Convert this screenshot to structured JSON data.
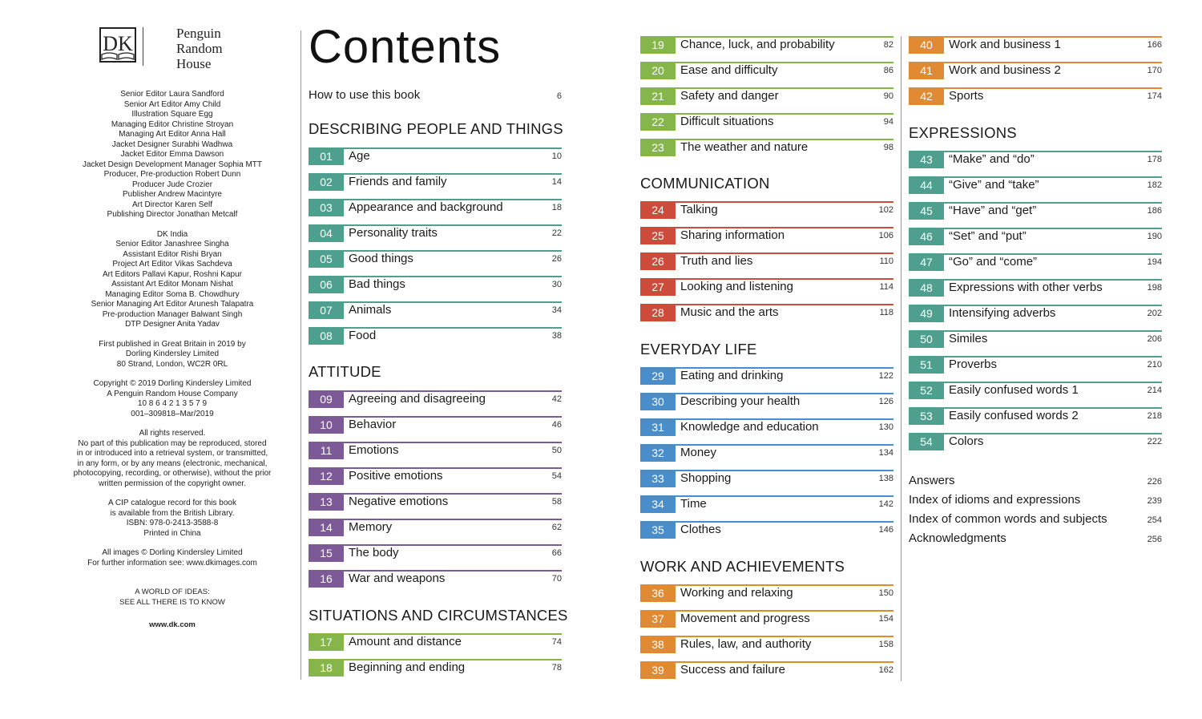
{
  "publisher": {
    "logo_text": "Penguin\nRandom\nHouse",
    "logo_line1": "Penguin",
    "logo_line2": "Random",
    "logo_line3": "House",
    "credits_uk": [
      {
        "role": "Senior Editor",
        "name": "Laura Sandford"
      },
      {
        "role": "Senior Art Editor",
        "name": "Amy Child"
      },
      {
        "role": "Illustration",
        "name": "Square Egg"
      },
      {
        "role": "Managing Editor",
        "name": "Christine Stroyan"
      },
      {
        "role": "Managing Art Editor",
        "name": "Anna Hall"
      },
      {
        "role": "Jacket Designer",
        "name": "Surabhi Wadhwa"
      },
      {
        "role": "Jacket Editor",
        "name": "Emma Dawson"
      },
      {
        "role": "Jacket Design Development Manager",
        "name": "Sophia MTT"
      },
      {
        "role": "Producer, Pre-production",
        "name": "Robert Dunn"
      },
      {
        "role": "Producer",
        "name": "Jude Crozier"
      },
      {
        "role": "Publisher",
        "name": "Andrew Macintyre"
      },
      {
        "role": "Art Director",
        "name": "Karen Self"
      },
      {
        "role": "Publishing Director",
        "name": "Jonathan Metcalf"
      }
    ],
    "india_heading": "DK India",
    "credits_india": [
      {
        "role": "Senior Editor",
        "name": "Janashree Singha"
      },
      {
        "role": "Assistant Editor",
        "name": "Rishi Bryan"
      },
      {
        "role": "Project Art Editor",
        "name": "Vikas Sachdeva"
      },
      {
        "role": "Art Editors",
        "name": "Pallavi Kapur, Roshni Kapur"
      },
      {
        "role": "Assistant Art Editor",
        "name": "Monam Nishat"
      },
      {
        "role": "Managing Editor",
        "name": "Soma B. Chowdhury"
      },
      {
        "role": "Senior Managing Art Editor",
        "name": "Arunesh Talapatra"
      },
      {
        "role": "Pre-production Manager",
        "name": "Balwant Singh"
      },
      {
        "role": "DTP Designer",
        "name": "Anita Yadav"
      }
    ],
    "first_published": [
      "First published in Great Britain in 2019 by",
      "Dorling Kindersley Limited",
      "80 Strand, London, WC2R 0RL"
    ],
    "copyright": [
      "Copyright © 2019 Dorling Kindersley Limited",
      "A Penguin Random House Company",
      "10 8 6 4 2 1 3 5 7 9",
      "001–309818–Mar/2019"
    ],
    "rights": [
      "All rights reserved.",
      "No part of this publication may be reproduced, stored",
      "in or introduced into a retrieval system, or transmitted,",
      "in any form, or by any means (electronic, mechanical,",
      "photocopying, recording, or otherwise), without the prior",
      "written permission of the copyright owner."
    ],
    "cip": [
      "A CIP catalogue record for this book",
      "is available from the British Library.",
      "ISBN: 978-0-2413-3588-8",
      "Printed in China"
    ],
    "images": [
      "All images © Dorling Kindersley Limited",
      "For further information see: www.dkimages.com"
    ],
    "tagline1": "A WORLD OF IDEAS:",
    "tagline2": "SEE ALL THERE IS TO KNOW",
    "website": "www.dk.com"
  },
  "contents": {
    "title": "Contents",
    "intro": {
      "label": "How to use this book",
      "page": "6"
    },
    "sections": [
      {
        "heading": "DESCRIBING PEOPLE AND THINGS",
        "color": "#4e9f8d",
        "entries": [
          {
            "num": "01",
            "label": "Age",
            "page": "10"
          },
          {
            "num": "02",
            "label": "Friends and family",
            "page": "14"
          },
          {
            "num": "03",
            "label": "Appearance and background",
            "page": "18"
          },
          {
            "num": "04",
            "label": "Personality traits",
            "page": "22"
          },
          {
            "num": "05",
            "label": "Good things",
            "page": "26"
          },
          {
            "num": "06",
            "label": "Bad things",
            "page": "30"
          },
          {
            "num": "07",
            "label": "Animals",
            "page": "34"
          },
          {
            "num": "08",
            "label": "Food",
            "page": "38"
          }
        ]
      },
      {
        "heading": "ATTITUDE",
        "color": "#7c5a98",
        "entries": [
          {
            "num": "09",
            "label": "Agreeing and disagreeing",
            "page": "42"
          },
          {
            "num": "10",
            "label": "Behavior",
            "page": "46"
          },
          {
            "num": "11",
            "label": "Emotions",
            "page": "50"
          },
          {
            "num": "12",
            "label": "Positive emotions",
            "page": "54"
          },
          {
            "num": "13",
            "label": "Negative emotions",
            "page": "58"
          },
          {
            "num": "14",
            "label": "Memory",
            "page": "62"
          },
          {
            "num": "15",
            "label": "The body",
            "page": "66"
          },
          {
            "num": "16",
            "label": "War and weapons",
            "page": "70"
          }
        ]
      },
      {
        "heading": "SITUATIONS AND CIRCUMSTANCES",
        "color": "#86b54a",
        "entries": [
          {
            "num": "17",
            "label": "Amount and distance",
            "page": "74"
          },
          {
            "num": "18",
            "label": "Beginning and ending",
            "page": "78"
          },
          {
            "num": "19",
            "label": "Chance, luck, and probability",
            "page": "82"
          },
          {
            "num": "20",
            "label": "Ease and difficulty",
            "page": "86"
          },
          {
            "num": "21",
            "label": "Safety and danger",
            "page": "90"
          },
          {
            "num": "22",
            "label": "Difficult situations",
            "page": "94"
          },
          {
            "num": "23",
            "label": "The weather and nature",
            "page": "98"
          }
        ]
      },
      {
        "heading": "COMMUNICATION",
        "color": "#cc4b3b",
        "entries": [
          {
            "num": "24",
            "label": "Talking",
            "page": "102"
          },
          {
            "num": "25",
            "label": "Sharing information",
            "page": "106"
          },
          {
            "num": "26",
            "label": "Truth and lies",
            "page": "110"
          },
          {
            "num": "27",
            "label": "Looking and listening",
            "page": "114"
          },
          {
            "num": "28",
            "label": "Music and the arts",
            "page": "118"
          }
        ]
      },
      {
        "heading": "EVERYDAY LIFE",
        "color": "#4a8dcb",
        "entries": [
          {
            "num": "29",
            "label": "Eating and drinking",
            "page": "122"
          },
          {
            "num": "30",
            "label": "Describing your health",
            "page": "126"
          },
          {
            "num": "31",
            "label": "Knowledge and education",
            "page": "130"
          },
          {
            "num": "32",
            "label": "Money",
            "page": "134"
          },
          {
            "num": "33",
            "label": "Shopping",
            "page": "138"
          },
          {
            "num": "34",
            "label": "Time",
            "page": "142"
          },
          {
            "num": "35",
            "label": "Clothes",
            "page": "146"
          }
        ]
      },
      {
        "heading": "WORK AND ACHIEVEMENTS",
        "color": "#e08a34",
        "entries": [
          {
            "num": "36",
            "label": "Working and relaxing",
            "page": "150"
          },
          {
            "num": "37",
            "label": "Movement and progress",
            "page": "154"
          },
          {
            "num": "38",
            "label": "Rules, law, and authority",
            "page": "158"
          },
          {
            "num": "39",
            "label": "Success and failure",
            "page": "162"
          },
          {
            "num": "40",
            "label": "Work and business 1",
            "page": "166"
          },
          {
            "num": "41",
            "label": "Work and business 2",
            "page": "170"
          },
          {
            "num": "42",
            "label": "Sports",
            "page": "174"
          }
        ]
      },
      {
        "heading": "EXPRESSIONS",
        "color": "#4e9f8d",
        "entries": [
          {
            "num": "43",
            "label": "“Make” and “do”",
            "page": "178"
          },
          {
            "num": "44",
            "label": "“Give” and “take”",
            "page": "182"
          },
          {
            "num": "45",
            "label": "“Have” and “get”",
            "page": "186"
          },
          {
            "num": "46",
            "label": "“Set” and “put”",
            "page": "190"
          },
          {
            "num": "47",
            "label": "“Go” and “come”",
            "page": "194"
          },
          {
            "num": "48",
            "label": "Expressions with other verbs",
            "page": "198"
          },
          {
            "num": "49",
            "label": "Intensifying adverbs",
            "page": "202"
          },
          {
            "num": "50",
            "label": "Similes",
            "page": "206"
          },
          {
            "num": "51",
            "label": "Proverbs",
            "page": "210"
          },
          {
            "num": "52",
            "label": "Easily confused words 1",
            "page": "214"
          },
          {
            "num": "53",
            "label": "Easily confused words 2",
            "page": "218"
          },
          {
            "num": "54",
            "label": "Colors",
            "page": "222"
          }
        ]
      }
    ],
    "back_matter": [
      {
        "label": "Answers",
        "page": "226"
      },
      {
        "label": "Index of idioms and expressions",
        "page": "239"
      },
      {
        "label": "Index of common words and subjects",
        "page": "254"
      },
      {
        "label": "Acknowledgments",
        "page": "256"
      }
    ]
  }
}
